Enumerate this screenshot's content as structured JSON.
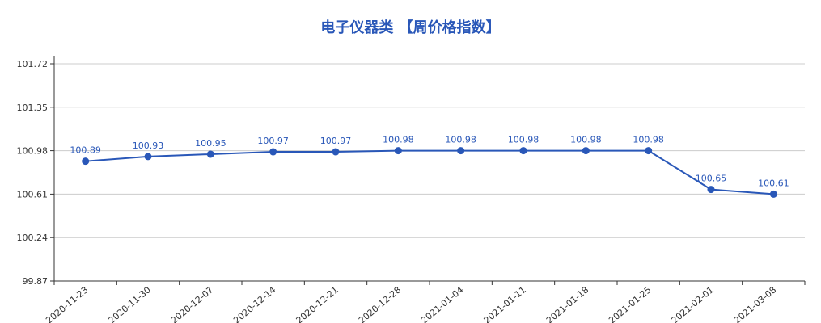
{
  "chart_data": {
    "type": "line",
    "title": "电子仪器类 【周价格指数】",
    "categories": [
      "2020-11-23",
      "2020-11-30",
      "2020-12-07",
      "2020-12-14",
      "2020-12-21",
      "2020-12-28",
      "2021-01-04",
      "2021-01-11",
      "2021-01-18",
      "2021-01-25",
      "2021-02-01",
      "2021-03-08"
    ],
    "series": [
      {
        "values": [
          100.89,
          100.93,
          100.95,
          100.97,
          100.97,
          100.98,
          100.98,
          100.98,
          100.98,
          100.98,
          100.65,
          100.61
        ]
      }
    ],
    "yticks": [
      "99.87",
      "100.24",
      "100.61",
      "100.98",
      "101.35",
      "101.72"
    ],
    "ylim": [
      99.87,
      101.72
    ],
    "grid": true,
    "data_labels": true,
    "colors": {
      "line": "#2957b8",
      "title": "#2957b8",
      "grid": "#cccccc"
    }
  }
}
